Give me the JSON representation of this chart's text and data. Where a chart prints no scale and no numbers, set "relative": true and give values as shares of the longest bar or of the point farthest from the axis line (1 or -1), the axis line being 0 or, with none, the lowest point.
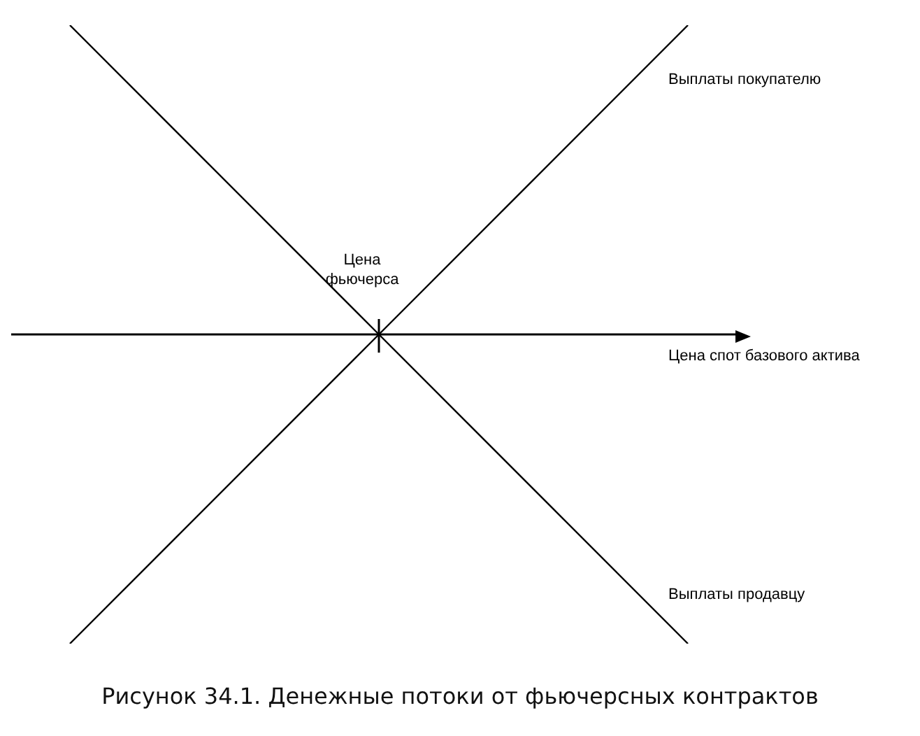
{
  "chart_data": {
    "type": "line",
    "relative": true,
    "title": "Рисунок 34.1. Денежные потоки от фьючерсных контрактов",
    "xlabel": "Цена спот базового актива",
    "categories": [
      null,
      null,
      null
    ],
    "series": [
      {
        "name": "Выплаты покупателю",
        "color": "#000000",
        "values": [
          -1,
          0,
          1
        ]
      },
      {
        "name": "Выплаты продавцу",
        "color": "#000000",
        "values": [
          1,
          0,
          -1
        ]
      }
    ],
    "annotations": [
      "Цена фьючерса"
    ],
    "marker": "none",
    "legend": false
  }
}
